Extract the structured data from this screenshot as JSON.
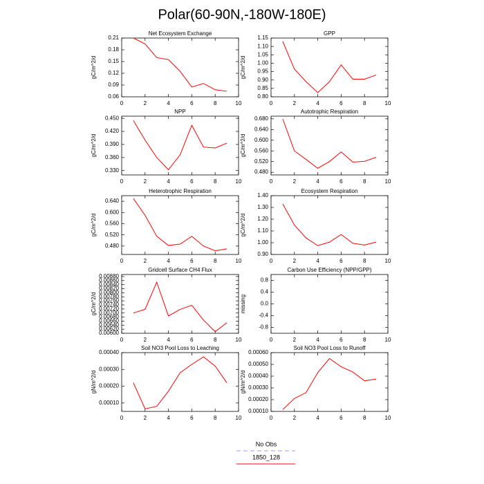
{
  "title": "Polar(60-90N,-180W-180E)",
  "legend": [
    {
      "name": "No Obs",
      "color": "#9999ff",
      "dashed": true
    },
    {
      "name": "1850_128",
      "color": "#ff0000",
      "dashed": false
    }
  ],
  "chart_data": [
    {
      "type": "line",
      "title": "Net Ecosystem Exchange",
      "ylabel": "gC/m^2/d",
      "color": "#ff0000",
      "x": [
        1,
        2,
        3,
        4,
        5,
        6,
        7,
        8,
        9
      ],
      "values": [
        0.21,
        0.195,
        0.16,
        0.155,
        0.125,
        0.085,
        0.094,
        0.078,
        0.074
      ],
      "xlim": [
        0,
        10
      ],
      "xticks": [
        0,
        2,
        4,
        6,
        8,
        10
      ],
      "ylim": [
        0.06,
        0.21
      ],
      "yticks": [
        0.06,
        0.09,
        0.12,
        0.15,
        0.18,
        0.21
      ]
    },
    {
      "type": "line",
      "title": "GPP",
      "ylabel": "gC/m^2/d",
      "color": "#ff0000",
      "x": [
        1,
        2,
        3,
        4,
        5,
        6,
        7,
        8,
        9
      ],
      "values": [
        1.13,
        0.965,
        0.89,
        0.825,
        0.89,
        0.99,
        0.905,
        0.905,
        0.93
      ],
      "xlim": [
        0,
        10
      ],
      "xticks": [
        0,
        2,
        4,
        6,
        8,
        10
      ],
      "ylim": [
        0.8,
        1.15
      ],
      "yticks": [
        {
          "value": 0.8,
          "label": "0.80"
        },
        0.85,
        {
          "value": 0.9,
          "label": "0.90"
        },
        0.95,
        {
          "value": 1,
          "label": "1.00"
        },
        1.05,
        {
          "value": 1.1,
          "label": "1.10"
        },
        1.15
      ]
    },
    {
      "type": "line",
      "title": "NPP",
      "ylabel": "gC/m^2/d",
      "color": "#ff0000",
      "x": [
        1,
        2,
        3,
        4,
        5,
        6,
        7,
        8,
        9
      ],
      "values": [
        0.445,
        0.4,
        0.36,
        0.332,
        0.366,
        0.434,
        0.384,
        0.382,
        0.393
      ],
      "xlim": [
        0,
        10
      ],
      "xticks": [
        0,
        2,
        4,
        6,
        8,
        10
      ],
      "ylim": [
        0.32,
        0.455
      ],
      "yticks": [
        {
          "value": 0.33,
          "label": "0.330"
        },
        {
          "value": 0.36,
          "label": "0.360"
        },
        {
          "value": 0.39,
          "label": "0.390"
        },
        {
          "value": 0.42,
          "label": "0.420"
        },
        {
          "value": 0.45,
          "label": "0.450"
        }
      ]
    },
    {
      "type": "line",
      "title": "Autotrophic Respiration",
      "ylabel": "gC/m^2/d",
      "color": "#ff0000",
      "x": [
        1,
        2,
        3,
        4,
        5,
        6,
        7,
        8,
        9
      ],
      "values": [
        0.68,
        0.56,
        0.528,
        0.495,
        0.52,
        0.556,
        0.518,
        0.521,
        0.536
      ],
      "xlim": [
        0,
        10
      ],
      "xticks": [
        0,
        2,
        4,
        6,
        8,
        10
      ],
      "ylim": [
        0.47,
        0.69
      ],
      "yticks": [
        {
          "value": 0.48,
          "label": "0.480"
        },
        {
          "value": 0.52,
          "label": "0.520"
        },
        {
          "value": 0.56,
          "label": "0.560"
        },
        {
          "value": 0.6,
          "label": "0.600"
        },
        {
          "value": 0.64,
          "label": "0.640"
        },
        {
          "value": 0.68,
          "label": "0.680"
        }
      ]
    },
    {
      "type": "line",
      "title": "Heterotrophic Respiration",
      "ylabel": "gC/m^2/d",
      "color": "#ff0000",
      "x": [
        1,
        2,
        3,
        4,
        5,
        6,
        7,
        8,
        9
      ],
      "values": [
        0.65,
        0.59,
        0.515,
        0.482,
        0.487,
        0.515,
        0.48,
        0.463,
        0.47
      ],
      "xlim": [
        0,
        10
      ],
      "xticks": [
        0,
        2,
        4,
        6,
        8,
        10
      ],
      "ylim": [
        0.45,
        0.66
      ],
      "yticks": [
        {
          "value": 0.48,
          "label": "0.480"
        },
        {
          "value": 0.52,
          "label": "0.520"
        },
        {
          "value": 0.56,
          "label": "0.560"
        },
        {
          "value": 0.6,
          "label": "0.600"
        },
        {
          "value": 0.64,
          "label": "0.640"
        }
      ]
    },
    {
      "type": "line",
      "title": "Ecosystem Respiration",
      "ylabel": "gC/m^2/d",
      "color": "#ff0000",
      "x": [
        1,
        2,
        3,
        4,
        5,
        6,
        7,
        8,
        9
      ],
      "values": [
        1.33,
        1.15,
        1.04,
        0.975,
        1.005,
        1.07,
        0.995,
        0.98,
        1.005
      ],
      "xlim": [
        0,
        10
      ],
      "xticks": [
        0,
        2,
        4,
        6,
        8,
        10
      ],
      "ylim": [
        0.9,
        1.4
      ],
      "yticks": [
        {
          "value": 0.9,
          "label": "0.90"
        },
        {
          "value": 1,
          "label": "1.00"
        },
        {
          "value": 1.1,
          "label": "1.10"
        },
        {
          "value": 1.2,
          "label": "1.20"
        },
        {
          "value": 1.3,
          "label": "1.30"
        },
        {
          "value": 1.4,
          "label": "1.40"
        }
      ]
    },
    {
      "type": "line",
      "title": "Gridcell Surface CH4 Flux",
      "ylabel": "gC/m^2/d",
      "color": "#ff0000",
      "x": [
        1,
        2,
        3,
        4,
        5,
        6,
        7,
        8,
        9
      ],
      "values": [
        0.007,
        0.00718,
        0.00852,
        0.00685,
        0.00718,
        0.00738,
        0.00665,
        0.00608,
        0.00652
      ],
      "xlim": [
        0,
        10
      ],
      "xticks": [
        0,
        2,
        4,
        6,
        8,
        10
      ],
      "ylim": [
        0.006,
        0.0089
      ],
      "yticks": [
        {
          "value": 0.006,
          "label": "0.00600"
        },
        {
          "value": 0.0062,
          "label": "0.00620"
        },
        {
          "value": 0.0064,
          "label": "0.00640"
        },
        {
          "value": 0.0066,
          "label": "0.00660"
        },
        {
          "value": 0.0068,
          "label": "0.00680"
        },
        {
          "value": 0.007,
          "label": "0.00700"
        },
        {
          "value": 0.0072,
          "label": "0.00720"
        },
        {
          "value": 0.0074,
          "label": "0.00740"
        },
        {
          "value": 0.0076,
          "label": "0.00760"
        },
        {
          "value": 0.0078,
          "label": "0.00780"
        },
        {
          "value": 0.008,
          "label": "0.00800"
        },
        {
          "value": 0.0082,
          "label": "0.00820"
        },
        {
          "value": 0.0084,
          "label": "0.00840"
        },
        {
          "value": 0.0086,
          "label": "0.00860"
        },
        {
          "value": 0.0088,
          "label": "0.00880"
        }
      ]
    },
    {
      "type": "line",
      "title": "Carbon Use Efficiency (NPP/GPP)",
      "ylabel": "missing",
      "color": "#ff0000",
      "x": [
        1,
        2,
        3,
        4,
        5,
        6,
        7,
        8,
        9
      ],
      "values": [
        null,
        null,
        null,
        null,
        null,
        null,
        null,
        null,
        null
      ],
      "xlim": [
        0,
        10
      ],
      "xticks": [
        0,
        2,
        4,
        6,
        8,
        10
      ],
      "ylim": [
        -1,
        1
      ],
      "yticks": [
        -0.8,
        -0.4,
        {
          "value": 0,
          "label": "0.0"
        },
        0.4,
        0.8
      ]
    },
    {
      "type": "line",
      "title": "Soil NO3 Pool Loss to Leaching",
      "ylabel": "gN/m^2/d",
      "color": "#ff0000",
      "x": [
        1,
        2,
        3,
        4,
        5,
        6,
        7,
        8,
        9
      ],
      "values": [
        0.00022,
        6.5e-05,
        8e-05,
        0.00017,
        0.00028,
        0.00033,
        0.000375,
        0.00032,
        0.00022
      ],
      "xlim": [
        0,
        10
      ],
      "xticks": [
        0,
        2,
        4,
        6,
        8,
        10
      ],
      "ylim": [
        5e-05,
        0.0004
      ],
      "yticks": [
        {
          "value": 0.0001,
          "label": "0.00010"
        },
        {
          "value": 0.0002,
          "label": "0.00020"
        },
        {
          "value": 0.0003,
          "label": "0.00030"
        },
        {
          "value": 0.0004,
          "label": "0.00040"
        }
      ]
    },
    {
      "type": "line",
      "title": "Soil NO3 Pool Loss to Runoff",
      "ylabel": "gN/m^2/d",
      "color": "#ff0000",
      "x": [
        1,
        2,
        3,
        4,
        5,
        6,
        7,
        8,
        9
      ],
      "values": [
        0.000115,
        0.00021,
        0.00026,
        0.00043,
        0.00055,
        0.00048,
        0.000435,
        0.00036,
        0.000375
      ],
      "xlim": [
        0,
        10
      ],
      "xticks": [
        0,
        2,
        4,
        6,
        8,
        10
      ],
      "ylim": [
        0.0001,
        0.0006
      ],
      "yticks": [
        {
          "value": 0.0001,
          "label": "0.00010"
        },
        {
          "value": 0.0002,
          "label": "0.00020"
        },
        {
          "value": 0.0003,
          "label": "0.00030"
        },
        {
          "value": 0.0004,
          "label": "0.00040"
        },
        {
          "value": 0.0005,
          "label": "0.00050"
        },
        {
          "value": 0.0006,
          "label": "0.00060"
        }
      ]
    }
  ]
}
